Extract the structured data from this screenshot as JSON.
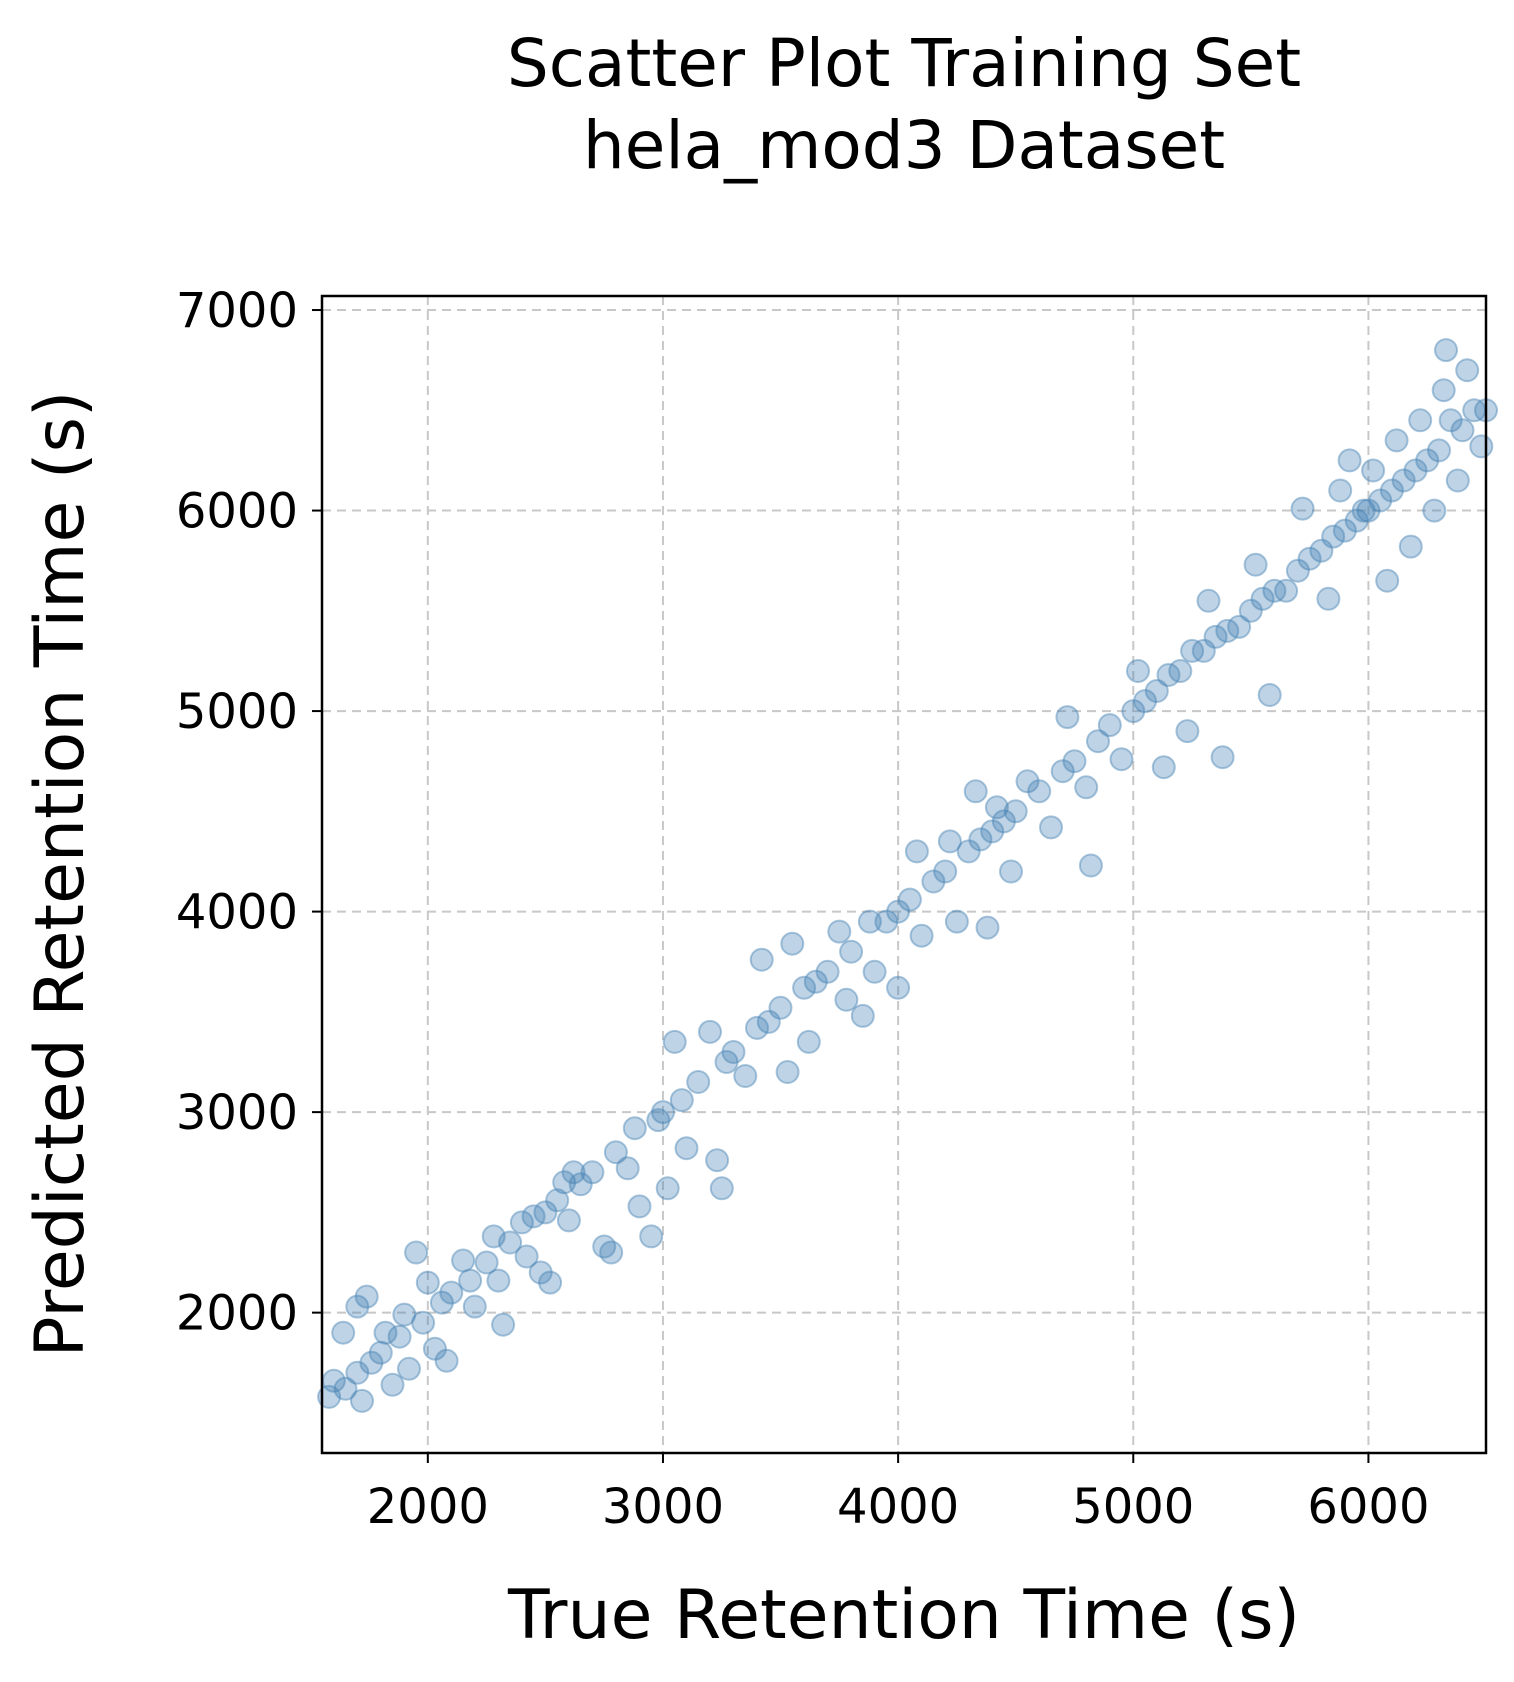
{
  "chart_data": {
    "type": "scatter",
    "title": "Scatter Plot Training Set",
    "subtitle": "hela_mod3 Dataset",
    "xlabel": "True Retention Time (s)",
    "ylabel": "Predicted Retention Time (s)",
    "xlim": [
      1550,
      6500
    ],
    "ylim": [
      1300,
      7070
    ],
    "xticks": [
      2000,
      3000,
      4000,
      5000,
      6000
    ],
    "yticks": [
      2000,
      3000,
      4000,
      5000,
      6000,
      7000
    ],
    "xtick_labels": [
      "2000",
      "3000",
      "4000",
      "5000",
      "6000"
    ],
    "ytick_labels": [
      "2000",
      "3000",
      "4000",
      "5000",
      "6000",
      "7000"
    ],
    "grid": true,
    "legend": "none",
    "marker_color": "#4682b4",
    "marker_alpha": 0.35,
    "series": [
      {
        "points": [
          [
            1580,
            1580
          ],
          [
            1600,
            1660
          ],
          [
            1640,
            1900
          ],
          [
            1650,
            1620
          ],
          [
            1700,
            1700
          ],
          [
            1700,
            2030
          ],
          [
            1720,
            1560
          ],
          [
            1740,
            2080
          ],
          [
            1760,
            1750
          ],
          [
            1800,
            1800
          ],
          [
            1820,
            1900
          ],
          [
            1850,
            1640
          ],
          [
            1880,
            1880
          ],
          [
            1900,
            1990
          ],
          [
            1920,
            1720
          ],
          [
            1950,
            2300
          ],
          [
            1980,
            1950
          ],
          [
            2000,
            2150
          ],
          [
            2030,
            1820
          ],
          [
            2060,
            2050
          ],
          [
            2080,
            1760
          ],
          [
            2100,
            2100
          ],
          [
            2150,
            2260
          ],
          [
            2180,
            2160
          ],
          [
            2200,
            2030
          ],
          [
            2250,
            2250
          ],
          [
            2280,
            2380
          ],
          [
            2300,
            2160
          ],
          [
            2320,
            1940
          ],
          [
            2350,
            2350
          ],
          [
            2400,
            2450
          ],
          [
            2420,
            2280
          ],
          [
            2450,
            2480
          ],
          [
            2480,
            2200
          ],
          [
            2500,
            2500
          ],
          [
            2520,
            2150
          ],
          [
            2550,
            2560
          ],
          [
            2580,
            2650
          ],
          [
            2600,
            2460
          ],
          [
            2620,
            2700
          ],
          [
            2650,
            2640
          ],
          [
            2700,
            2700
          ],
          [
            2750,
            2330
          ],
          [
            2780,
            2300
          ],
          [
            2800,
            2800
          ],
          [
            2850,
            2720
          ],
          [
            2880,
            2920
          ],
          [
            2900,
            2530
          ],
          [
            2950,
            2380
          ],
          [
            2980,
            2960
          ],
          [
            3000,
            3000
          ],
          [
            3020,
            2620
          ],
          [
            3050,
            3350
          ],
          [
            3080,
            3060
          ],
          [
            3100,
            2820
          ],
          [
            3150,
            3150
          ],
          [
            3200,
            3400
          ],
          [
            3230,
            2760
          ],
          [
            3250,
            2620
          ],
          [
            3270,
            3250
          ],
          [
            3300,
            3300
          ],
          [
            3350,
            3180
          ],
          [
            3400,
            3420
          ],
          [
            3420,
            3760
          ],
          [
            3450,
            3450
          ],
          [
            3500,
            3520
          ],
          [
            3530,
            3200
          ],
          [
            3550,
            3840
          ],
          [
            3600,
            3620
          ],
          [
            3620,
            3350
          ],
          [
            3650,
            3650
          ],
          [
            3700,
            3700
          ],
          [
            3750,
            3900
          ],
          [
            3780,
            3560
          ],
          [
            3800,
            3800
          ],
          [
            3850,
            3480
          ],
          [
            3880,
            3950
          ],
          [
            3900,
            3700
          ],
          [
            3950,
            3950
          ],
          [
            4000,
            3620
          ],
          [
            4000,
            4000
          ],
          [
            4050,
            4060
          ],
          [
            4080,
            4300
          ],
          [
            4100,
            3880
          ],
          [
            4150,
            4150
          ],
          [
            4200,
            4200
          ],
          [
            4220,
            4350
          ],
          [
            4250,
            3950
          ],
          [
            4300,
            4300
          ],
          [
            4330,
            4600
          ],
          [
            4350,
            4360
          ],
          [
            4380,
            3920
          ],
          [
            4400,
            4400
          ],
          [
            4420,
            4520
          ],
          [
            4450,
            4450
          ],
          [
            4480,
            4200
          ],
          [
            4500,
            4500
          ],
          [
            4550,
            4650
          ],
          [
            4600,
            4600
          ],
          [
            4650,
            4420
          ],
          [
            4700,
            4700
          ],
          [
            4720,
            4970
          ],
          [
            4750,
            4750
          ],
          [
            4800,
            4620
          ],
          [
            4820,
            4230
          ],
          [
            4850,
            4850
          ],
          [
            4900,
            4930
          ],
          [
            4950,
            4760
          ],
          [
            5000,
            5000
          ],
          [
            5020,
            5200
          ],
          [
            5050,
            5050
          ],
          [
            5100,
            5100
          ],
          [
            5130,
            4720
          ],
          [
            5150,
            5180
          ],
          [
            5200,
            5200
          ],
          [
            5230,
            4900
          ],
          [
            5250,
            5300
          ],
          [
            5300,
            5300
          ],
          [
            5320,
            5550
          ],
          [
            5350,
            5370
          ],
          [
            5380,
            4770
          ],
          [
            5400,
            5400
          ],
          [
            5450,
            5420
          ],
          [
            5500,
            5500
          ],
          [
            5520,
            5730
          ],
          [
            5550,
            5560
          ],
          [
            5580,
            5080
          ],
          [
            5600,
            5600
          ],
          [
            5650,
            5600
          ],
          [
            5700,
            5700
          ],
          [
            5720,
            6010
          ],
          [
            5750,
            5760
          ],
          [
            5800,
            5800
          ],
          [
            5830,
            5560
          ],
          [
            5850,
            5870
          ],
          [
            5880,
            6100
          ],
          [
            5900,
            5900
          ],
          [
            5920,
            6250
          ],
          [
            5950,
            5950
          ],
          [
            5980,
            6000
          ],
          [
            6000,
            6000
          ],
          [
            6020,
            6200
          ],
          [
            6050,
            6050
          ],
          [
            6080,
            5650
          ],
          [
            6100,
            6100
          ],
          [
            6120,
            6350
          ],
          [
            6150,
            6150
          ],
          [
            6180,
            5820
          ],
          [
            6200,
            6200
          ],
          [
            6220,
            6450
          ],
          [
            6250,
            6250
          ],
          [
            6280,
            6000
          ],
          [
            6300,
            6300
          ],
          [
            6320,
            6600
          ],
          [
            6330,
            6800
          ],
          [
            6350,
            6450
          ],
          [
            6380,
            6150
          ],
          [
            6400,
            6400
          ],
          [
            6420,
            6700
          ],
          [
            6450,
            6500
          ],
          [
            6480,
            6320
          ],
          [
            6500,
            6500
          ]
        ]
      }
    ]
  }
}
